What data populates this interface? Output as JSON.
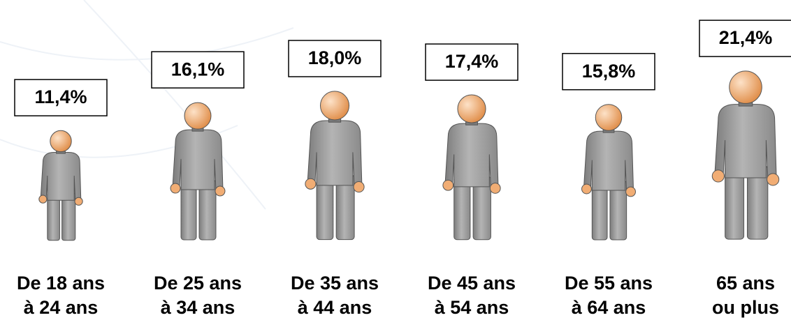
{
  "chart_data": {
    "type": "pictogram",
    "categories": [
      [
        "De 18 ans",
        "à 24 ans"
      ],
      [
        "De 25 ans",
        "à 34 ans"
      ],
      [
        "De 35 ans",
        "à 44 ans"
      ],
      [
        "De 45 ans",
        "à 54 ans"
      ],
      [
        "De 55 ans",
        "à 64 ans"
      ],
      [
        "65 ans",
        "ou plus"
      ]
    ],
    "values": [
      11.4,
      16.1,
      18.0,
      17.4,
      15.8,
      21.4
    ],
    "value_labels": [
      "11,4%",
      "16,1%",
      "18,0%",
      "17,4%",
      "15,8%",
      "21,4%"
    ],
    "color": "#9c9c9c",
    "head_color": "#f1ad74"
  }
}
